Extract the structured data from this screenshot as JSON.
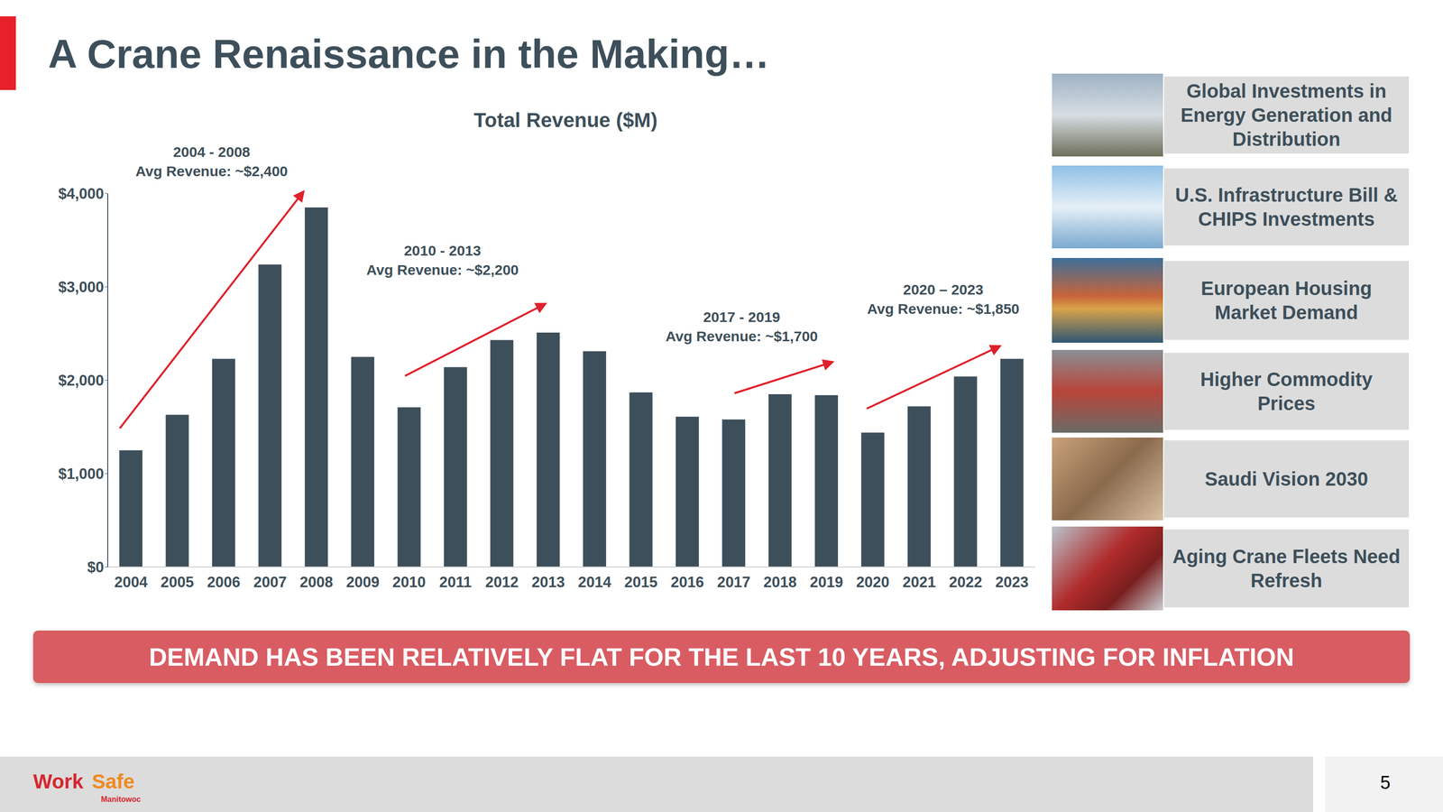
{
  "slide": {
    "title": "A Crane Renaissance in the Making…",
    "banner": "DEMAND HAS BEEN RELATIVELY FLAT FOR THE LAST 10 YEARS, ADJUSTING FOR INFLATION",
    "drivers": [
      "Global Investments in Energy Generation and Distribution",
      "U.S. Infrastructure Bill & CHIPS Investments",
      "European Housing Market Demand",
      "Higher Commodity Prices",
      "Saudi Vision 2030",
      "Aging Crane Fleets Need Refresh"
    ],
    "logo": {
      "work": "Work",
      "safe": "Safe",
      "brand": "Manitowoc"
    },
    "page": "5"
  },
  "chart_data": {
    "type": "bar",
    "title": "Total Revenue ($M)",
    "categories": [
      "2004",
      "2005",
      "2006",
      "2007",
      "2008",
      "2009",
      "2010",
      "2011",
      "2012",
      "2013",
      "2014",
      "2015",
      "2016",
      "2017",
      "2018",
      "2019",
      "2020",
      "2021",
      "2022",
      "2023"
    ],
    "values": [
      1250,
      1630,
      2230,
      3240,
      3850,
      2250,
      1710,
      2140,
      2430,
      2510,
      2310,
      1870,
      1610,
      1580,
      1850,
      1840,
      1440,
      1720,
      2040,
      2230
    ],
    "color": "#3d4f5a",
    "ylim": [
      0,
      4000
    ],
    "yticks": [
      {
        "value": 0,
        "label": "$0"
      },
      {
        "value": 1000,
        "label": "$1,000"
      },
      {
        "value": 2000,
        "label": "$2,000"
      },
      {
        "value": 3000,
        "label": "$3,000"
      },
      {
        "value": 4000,
        "label": "$4,000"
      }
    ],
    "grid": false,
    "annotations": [
      {
        "label": "2004 - 2008",
        "text": "Avg Revenue: ~$2,400"
      },
      {
        "label": "2010 - 2013",
        "text": "Avg Revenue: ~$2,200"
      },
      {
        "label": "2017 - 2019",
        "text": "Avg Revenue: ~$1,700"
      },
      {
        "label": "2020 – 2023",
        "text": "Avg Revenue: ~$1,850"
      }
    ]
  }
}
